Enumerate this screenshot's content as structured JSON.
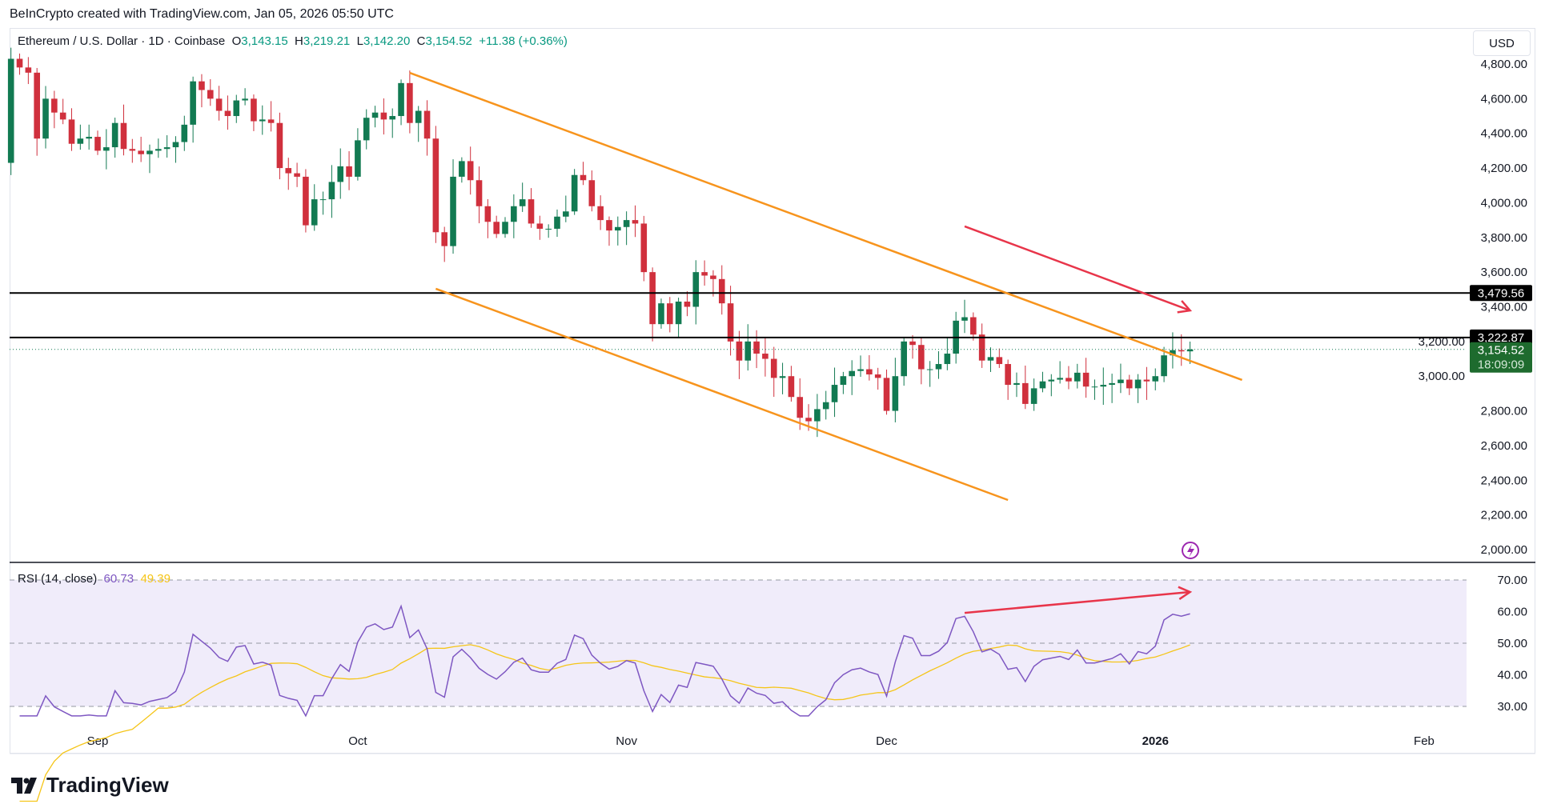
{
  "credit": "BeInCrypto created with TradingView.com, Jan 05, 2026 05:50 UTC",
  "legend": {
    "symbol": "Ethereum / U.S. Dollar · 1D · Coinbase",
    "o_label": "O",
    "open": "3,143.15",
    "h_label": "H",
    "high": "3,219.21",
    "l_label": "L",
    "low": "3,142.20",
    "c_label": "C",
    "close": "3,154.52",
    "change": "+11.38 (+0.36%)"
  },
  "currency": "USD",
  "rsi_legend": {
    "label": "RSI (14, close)",
    "rsi": "60.73",
    "ma": "49.39"
  },
  "logo": "TradingView",
  "colors": {
    "up": "#127a52",
    "down": "#d0303d",
    "channel": "#f7941d",
    "arrow": "#e8354a",
    "rsi": "#7e57c2",
    "rsi_ma": "#f5c518",
    "rsi_band": "#f0ecfa"
  },
  "chart_data": [
    {
      "type": "candlestick",
      "start_date": "2025-08-22",
      "closes": [
        4830,
        4780,
        4750,
        4370,
        4600,
        4520,
        4480,
        4340,
        4370,
        4380,
        4300,
        4320,
        4460,
        4310,
        4300,
        4280,
        4300,
        4310,
        4320,
        4350,
        4450,
        4700,
        4650,
        4600,
        4530,
        4500,
        4590,
        4600,
        4470,
        4480,
        4460,
        4200,
        4170,
        4150,
        3870,
        4020,
        4020,
        4120,
        4210,
        4150,
        4360,
        4490,
        4520,
        4480,
        4500,
        4690,
        4460,
        4530,
        4370,
        3830,
        3750,
        4150,
        4240,
        4130,
        3980,
        3890,
        3820,
        3890,
        3980,
        4020,
        3880,
        3850,
        3850,
        3920,
        3950,
        4160,
        4130,
        3980,
        3900,
        3840,
        3860,
        3900,
        3880,
        3600,
        3300,
        3420,
        3300,
        3430,
        3400,
        3600,
        3580,
        3560,
        3420,
        3200,
        3090,
        3200,
        3130,
        3100,
        2990,
        3000,
        2880,
        2760,
        2740,
        2810,
        2850,
        2950,
        3000,
        3030,
        3040,
        3010,
        2990,
        2800,
        3000,
        3200,
        3180,
        3040,
        3040,
        3070,
        3130,
        3320,
        3340,
        3240,
        3090,
        3110,
        3070,
        2950,
        2960,
        2840,
        2930,
        2970,
        2980,
        2990,
        2970,
        3020,
        2940,
        2940,
        2950,
        2960,
        2980,
        2930,
        2980,
        2970,
        3000,
        3120,
        3150,
        3143.15,
        3154.52
      ],
      "y_ticks": [
        "2,000.00",
        "2,200.00",
        "2,400.00",
        "2,600.00",
        "2,800.00",
        "3,000.00",
        "3,200.00",
        "3,400.00",
        "3,600.00",
        "3,800.00",
        "4,000.00",
        "4,200.00",
        "4,400.00",
        "4,600.00",
        "4,800.00"
      ],
      "ylim": [
        2000,
        4800
      ],
      "x_ticks": [
        {
          "label": "Sep",
          "date": "2025-09-01"
        },
        {
          "label": "Oct",
          "date": "2025-10-01"
        },
        {
          "label": "Nov",
          "date": "2025-11-01"
        },
        {
          "label": "Dec",
          "date": "2025-12-01"
        },
        {
          "label": "2026",
          "date": "2026-01-01"
        },
        {
          "label": "Feb",
          "date": "2026-02-01"
        }
      ],
      "horizontal_levels": [
        {
          "price": 3479.56,
          "label": "3,479.56"
        },
        {
          "price": 3222.87,
          "label": "3,222.87"
        }
      ],
      "last_price": {
        "price": 3154.52,
        "label": "3,154.52",
        "countdown": "18:09:09"
      },
      "channel": {
        "upper": [
          {
            "date": "2025-10-07",
            "price": 4749
          },
          {
            "date": "2026-01-11",
            "price": 2978
          }
        ],
        "lower": [
          {
            "date": "2025-10-10",
            "price": 3504
          },
          {
            "date": "2025-12-15",
            "price": 2286
          }
        ]
      },
      "arrow": [
        {
          "date": "2025-12-10",
          "price": 3864
        },
        {
          "date": "2026-01-05",
          "price": 3379
        }
      ]
    },
    {
      "type": "line",
      "series": [
        {
          "name": "RSI (14, close)"
        },
        {
          "name": "RSI-based MA"
        }
      ],
      "ylim": [
        27,
        72
      ],
      "y_ticks": [
        "30.00",
        "40.00",
        "50.00",
        "60.00",
        "70.00"
      ],
      "levels": [
        70,
        50,
        30
      ],
      "arrow": [
        {
          "date": "2025-12-10",
          "value": 59.6
        },
        {
          "date": "2026-01-05",
          "value": 66.2
        }
      ]
    }
  ]
}
